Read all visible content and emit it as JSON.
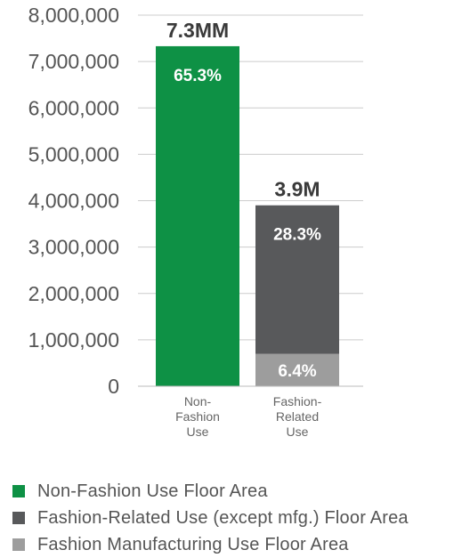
{
  "chart_data": {
    "type": "bar",
    "stacked": true,
    "categories": [
      "Non-\nFashion\nUse",
      "Fashion-\nRelated\nUse"
    ],
    "ylim": [
      0,
      8000000
    ],
    "yticks": [
      "0",
      "1,000,000",
      "2,000,000",
      "3,000,000",
      "4,000,000",
      "5,000,000",
      "6,000,000",
      "7,000,000",
      "8,000,000"
    ],
    "series": [
      {
        "name": "Non-Fashion Use Floor Area",
        "color": "#0e9145",
        "values": [
          7330000,
          0
        ],
        "labels": [
          "65.3%",
          ""
        ]
      },
      {
        "name": "Fashion Manufacturing Use Floor Area",
        "color": "#9d9d9d",
        "values": [
          0,
          700000
        ],
        "labels": [
          "",
          "6.4%"
        ]
      },
      {
        "name": "Fashion-Related Use (except mfg.) Floor Area",
        "color": "#58595b",
        "values": [
          0,
          3200000
        ],
        "labels": [
          "",
          "28.3%"
        ]
      }
    ],
    "totals": [
      "7.3MM",
      "3.9M"
    ],
    "grid": true
  },
  "legend": [
    {
      "label": "Non-Fashion Use Floor Area",
      "color": "#0e9145"
    },
    {
      "label": "Fashion-Related Use (except mfg.) Floor Area",
      "color": "#58595b"
    },
    {
      "label": "Fashion Manufacturing Use Floor Area",
      "color": "#9d9d9d"
    }
  ]
}
